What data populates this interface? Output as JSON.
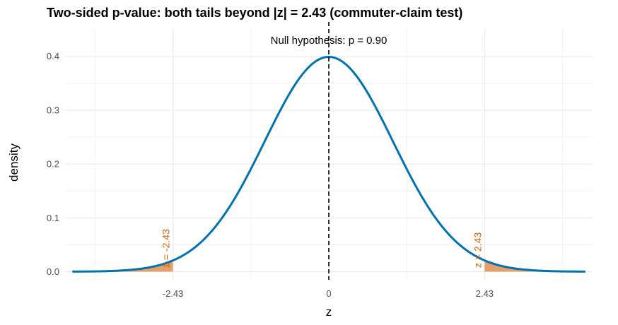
{
  "chart_data": {
    "type": "area",
    "title": "Two-sided p-value: both tails beyond |z| = 2.43 (commuter-claim test)",
    "xlabel": "z",
    "ylabel": "density",
    "xlim": [
      -4,
      4
    ],
    "ylim": [
      0,
      0.45
    ],
    "x_ticks": [
      -2.43,
      0,
      2.43
    ],
    "x_tick_labels": [
      "-2.43",
      "0",
      "2.43"
    ],
    "y_ticks": [
      0,
      0.1,
      0.2,
      0.3,
      0.4
    ],
    "y_tick_labels": [
      "0.0",
      "0.1",
      "0.2",
      "0.3",
      "0.4"
    ],
    "grid": true,
    "distribution": "standard-normal",
    "critical_z": 2.43,
    "critical_labels": [
      "z = -2.43",
      "z = 2.43"
    ],
    "null_line_x": 0,
    "null_label": "Null hypothesis: p = 0.90",
    "colors": {
      "curve": "#0072b2",
      "tail_fill": "#e69f66",
      "critical_label": "#d55e00",
      "null_line": "#000000",
      "grid": "#ebebeb"
    }
  }
}
